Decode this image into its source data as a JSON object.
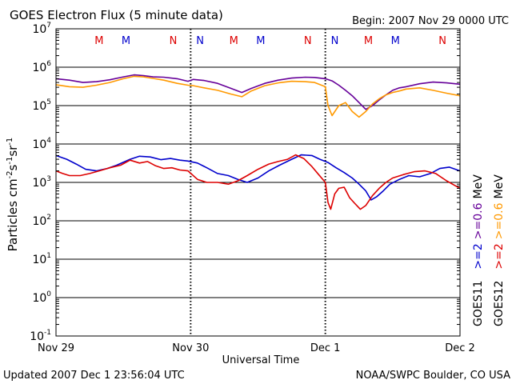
{
  "chart_data": {
    "type": "line",
    "title": "GOES Electron Flux (5 minute data)",
    "begin_label": "Begin: 2007 Nov 29 0000 UTC",
    "updated_label": "Updated 2007 Dec  1 23:56:04 UTC",
    "credit_label": "NOAA/SWPC Boulder, CO USA",
    "xlabel": "Universal Time",
    "ylabel": "Particles cm",
    "ylabel_exp1": "-2",
    "ylabel_mid1": "s",
    "ylabel_exp2": "-1",
    "ylabel_mid2": "sr",
    "ylabel_exp3": "-1",
    "yscale": "log",
    "ylim_exp": [
      -1,
      7
    ],
    "xlim_days": [
      0,
      3
    ],
    "x_ticks": [
      {
        "day": 0,
        "label": "Nov 29"
      },
      {
        "day": 1,
        "label": "Nov 30"
      },
      {
        "day": 2,
        "label": "Dec 1"
      },
      {
        "day": 3,
        "label": "Dec 2"
      }
    ],
    "y_ticks": [
      {
        "exp": -1,
        "base": "10",
        "sup": "-1"
      },
      {
        "exp": 0,
        "base": "10",
        "sup": "0"
      },
      {
        "exp": 1,
        "base": "10",
        "sup": "1"
      },
      {
        "exp": 2,
        "base": "10",
        "sup": "2"
      },
      {
        "exp": 3,
        "base": "10",
        "sup": "3"
      },
      {
        "exp": 4,
        "base": "10",
        "sup": "4"
      },
      {
        "exp": 5,
        "base": "10",
        "sup": "5"
      },
      {
        "exp": 6,
        "base": "10",
        "sup": "6"
      },
      {
        "exp": 7,
        "base": "10",
        "sup": "7"
      }
    ],
    "threshold": 1000,
    "markers": [
      {
        "day": 0.32,
        "label": "M",
        "color": "#dd0000"
      },
      {
        "day": 0.52,
        "label": "M",
        "color": "#0000cc"
      },
      {
        "day": 0.87,
        "label": "N",
        "color": "#dd0000"
      },
      {
        "day": 1.07,
        "label": "N",
        "color": "#0000cc"
      },
      {
        "day": 1.32,
        "label": "M",
        "color": "#dd0000"
      },
      {
        "day": 1.52,
        "label": "M",
        "color": "#0000cc"
      },
      {
        "day": 1.87,
        "label": "N",
        "color": "#dd0000"
      },
      {
        "day": 2.07,
        "label": "N",
        "color": "#0000cc"
      },
      {
        "day": 2.32,
        "label": "M",
        "color": "#dd0000"
      },
      {
        "day": 2.52,
        "label": "M",
        "color": "#0000cc"
      },
      {
        "day": 2.87,
        "label": "N",
        "color": "#dd0000"
      },
      {
        "day": 3.07,
        "label": "N",
        "color": "#0000cc"
      }
    ],
    "legend": {
      "row1": [
        {
          "text": "GOES11",
          "color": "#000000"
        },
        {
          "text": ">=2",
          "color": "#0000cc"
        },
        {
          "text": ">=0.6",
          "color": "#660099"
        },
        {
          "text": "MeV",
          "color": "#000000"
        }
      ],
      "row2": [
        {
          "text": "GOES12",
          "color": "#000000"
        },
        {
          "text": ">=2",
          "color": "#dd0000"
        },
        {
          "text": ">=0.6",
          "color": "#ff9900"
        },
        {
          "text": "MeV",
          "color": "#000000"
        }
      ]
    },
    "series": [
      {
        "satellite": "GOES11",
        "energy": ">=0.6 MeV",
        "color": "#660099",
        "x": [
          0,
          0.1,
          0.2,
          0.3,
          0.4,
          0.5,
          0.58,
          0.65,
          0.72,
          0.8,
          0.9,
          0.98,
          1.02,
          1.1,
          1.2,
          1.3,
          1.38,
          1.45,
          1.55,
          1.65,
          1.75,
          1.85,
          1.92,
          2.0,
          2.05,
          2.1,
          2.15,
          2.2,
          2.25,
          2.3,
          2.35,
          2.4,
          2.45,
          2.5,
          2.55,
          2.6,
          2.7,
          2.8,
          2.9,
          3.0
        ],
        "y": [
          500000.0,
          460000.0,
          400000.0,
          420000.0,
          470000.0,
          560000.0,
          630000.0,
          600000.0,
          560000.0,
          550000.0,
          500000.0,
          430000.0,
          480000.0,
          450000.0,
          380000.0,
          280000.0,
          220000.0,
          280000.0,
          380000.0,
          460000.0,
          520000.0,
          550000.0,
          540000.0,
          500000.0,
          440000.0,
          340000.0,
          250000.0,
          180000.0,
          120000.0,
          80000.0,
          100000.0,
          140000.0,
          190000.0,
          250000.0,
          290000.0,
          310000.0,
          370000.0,
          410000.0,
          390000.0,
          360000.0
        ]
      },
      {
        "satellite": "GOES12",
        "energy": ">=0.6 MeV",
        "color": "#ff9900",
        "x": [
          0,
          0.1,
          0.2,
          0.3,
          0.4,
          0.5,
          0.58,
          0.65,
          0.72,
          0.8,
          0.9,
          0.98,
          1.02,
          1.1,
          1.2,
          1.3,
          1.38,
          1.45,
          1.55,
          1.65,
          1.75,
          1.85,
          1.92,
          2.0,
          2.02,
          2.05,
          2.1,
          2.15,
          2.2,
          2.25,
          2.3,
          2.35,
          2.4,
          2.45,
          2.5,
          2.55,
          2.6,
          2.7,
          2.8,
          2.9,
          3.0
        ],
        "y": [
          350000.0,
          310000.0,
          300000.0,
          340000.0,
          400000.0,
          500000.0,
          580000.0,
          560000.0,
          510000.0,
          460000.0,
          380000.0,
          340000.0,
          330000.0,
          290000.0,
          250000.0,
          200000.0,
          170000.0,
          240000.0,
          330000.0,
          390000.0,
          430000.0,
          420000.0,
          400000.0,
          310000.0,
          100000.0,
          55000.0,
          100000.0,
          120000.0,
          70000.0,
          50000.0,
          70000.0,
          110000.0,
          150000.0,
          190000.0,
          220000.0,
          240000.0,
          270000.0,
          290000.0,
          250000.0,
          210000.0,
          180000.0
        ]
      },
      {
        "satellite": "GOES11",
        "energy": ">=2 MeV",
        "color": "#0000cc",
        "x": [
          0,
          0.08,
          0.15,
          0.22,
          0.3,
          0.38,
          0.45,
          0.55,
          0.62,
          0.7,
          0.78,
          0.85,
          0.92,
          0.98,
          1.05,
          1.12,
          1.2,
          1.28,
          1.35,
          1.42,
          1.5,
          1.58,
          1.66,
          1.75,
          1.82,
          1.9,
          1.96,
          2.02,
          2.08,
          2.14,
          2.2,
          2.25,
          2.3,
          2.34,
          2.38,
          2.43,
          2.48,
          2.55,
          2.62,
          2.7,
          2.78,
          2.85,
          2.92,
          3.0
        ],
        "y": [
          5000,
          4000,
          3000,
          2200,
          2000,
          2300,
          2800,
          4000,
          4800,
          4600,
          3900,
          4200,
          3800,
          3600,
          3200,
          2400,
          1700,
          1500,
          1200,
          1000,
          1300,
          2000,
          2800,
          4000,
          5200,
          5000,
          4000,
          3300,
          2400,
          1800,
          1300,
          900,
          600,
          350,
          420,
          600,
          900,
          1200,
          1500,
          1400,
          1700,
          2300,
          2500,
          2000
        ]
      },
      {
        "satellite": "GOES12",
        "energy": ">=2 MeV",
        "color": "#dd0000",
        "x": [
          0,
          0.05,
          0.1,
          0.18,
          0.25,
          0.32,
          0.4,
          0.48,
          0.55,
          0.62,
          0.68,
          0.74,
          0.8,
          0.86,
          0.92,
          0.98,
          1.05,
          1.12,
          1.2,
          1.28,
          1.35,
          1.42,
          1.5,
          1.58,
          1.65,
          1.72,
          1.78,
          1.84,
          1.9,
          1.95,
          2.0,
          2.02,
          2.04,
          2.07,
          2.1,
          2.14,
          2.18,
          2.22,
          2.26,
          2.3,
          2.35,
          2.4,
          2.45,
          2.5,
          2.58,
          2.66,
          2.74,
          2.82,
          2.9,
          3.0
        ],
        "y": [
          2000,
          1700,
          1500,
          1500,
          1700,
          2000,
          2400,
          2800,
          3800,
          3200,
          3500,
          2700,
          2300,
          2400,
          2100,
          2000,
          1200,
          1000,
          1000,
          900,
          1100,
          1500,
          2200,
          3000,
          3500,
          4000,
          5200,
          4200,
          2600,
          1600,
          1000,
          300,
          200,
          500,
          700,
          750,
          400,
          280,
          200,
          250,
          450,
          700,
          1000,
          1300,
          1600,
          1900,
          2000,
          1700,
          1100,
          700
        ]
      }
    ]
  }
}
